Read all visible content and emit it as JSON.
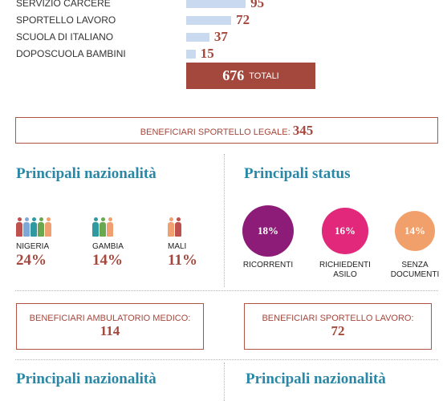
{
  "services": [
    {
      "label": "SERVIZIO CARCERE",
      "value": 95
    },
    {
      "label": "SPORTELLO LAVORO",
      "value": 72
    },
    {
      "label": "SCUOLA DI ITALIANO",
      "value": 37
    },
    {
      "label": "DOPOSCUOLA BAMBINI",
      "value": 15
    }
  ],
  "total": {
    "value": 676,
    "label": "TOTALI"
  },
  "legal": {
    "label": "BENEFICIARI SPORTELLO LEGALE:",
    "value": 345
  },
  "left_title": "Principali nazionalità",
  "nationalities": [
    {
      "name": "NIGERIA",
      "value": "24%"
    },
    {
      "name": "GAMBIA",
      "value": "14%"
    },
    {
      "name": "MALI",
      "value": "11%"
    }
  ],
  "right_title": "Principali status",
  "status": [
    {
      "value": 18,
      "value_label": "18%",
      "label": "RICORRENTI",
      "color": "#8d1c79"
    },
    {
      "value": 16,
      "value_label": "16%",
      "label": "RICHIEDENTI ASILO",
      "color": "#e1287b"
    },
    {
      "value": 14,
      "value_label": "14%",
      "label": "SENZA DOCUMENTI",
      "color": "#f1a06c"
    }
  ],
  "medical": {
    "label": "BENEFICIARI AMBULATORIO MEDICO:",
    "value": 114
  },
  "job": {
    "label": "BENEFICIARI SPORTELLO LAVORO:",
    "value": 72
  },
  "bottom_left_title": "Principali nazionalità",
  "bottom_right_title": "Principali nazionalità"
}
